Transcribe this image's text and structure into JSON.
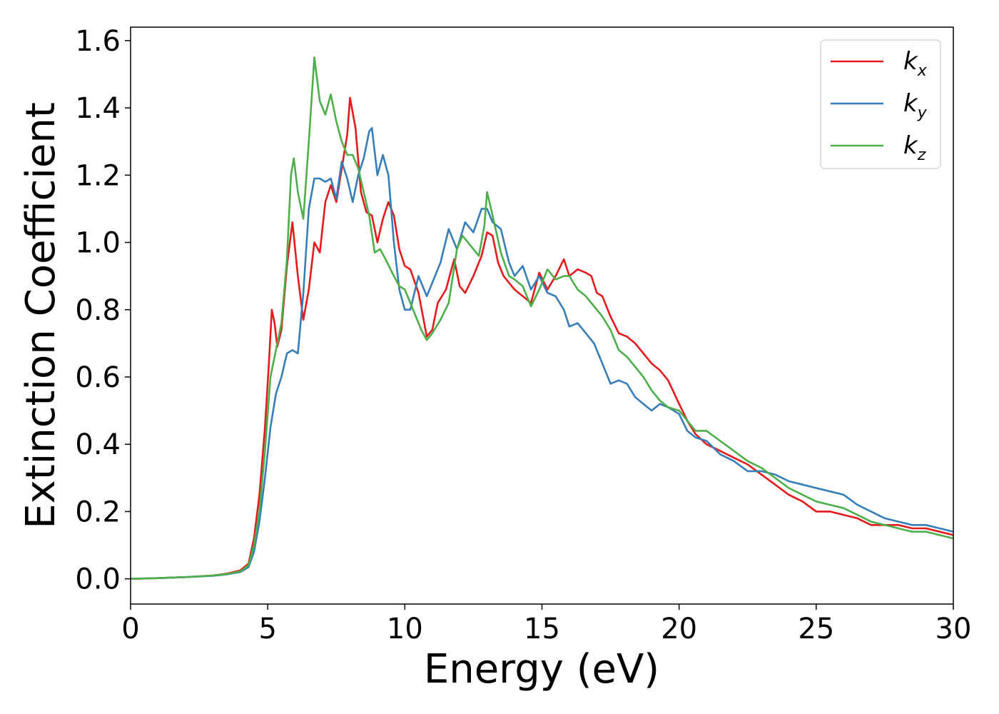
{
  "chart_data": {
    "type": "line",
    "xlabel": "Energy (eV)",
    "ylabel": "Extinction Coefficient",
    "xlim": [
      0,
      30
    ],
    "ylim": [
      -0.075,
      1.64
    ],
    "xticks": [
      0,
      5,
      10,
      15,
      20,
      25,
      30
    ],
    "yticks": [
      0.0,
      0.2,
      0.4,
      0.6,
      0.8,
      1.0,
      1.2,
      1.4,
      1.6
    ],
    "grid": false,
    "legend_position": "top-right",
    "series": [
      {
        "name": "k_x",
        "base": "k",
        "sub": "x",
        "color": "#e41a1c",
        "points": [
          [
            0,
            0.0
          ],
          [
            1,
            0.002
          ],
          [
            2,
            0.005
          ],
          [
            3,
            0.01
          ],
          [
            3.5,
            0.015
          ],
          [
            4,
            0.025
          ],
          [
            4.3,
            0.045
          ],
          [
            4.5,
            0.12
          ],
          [
            4.7,
            0.25
          ],
          [
            4.9,
            0.45
          ],
          [
            5.05,
            0.65
          ],
          [
            5.15,
            0.8
          ],
          [
            5.25,
            0.76
          ],
          [
            5.35,
            0.69
          ],
          [
            5.5,
            0.74
          ],
          [
            5.7,
            0.93
          ],
          [
            5.9,
            1.06
          ],
          [
            6.1,
            0.9
          ],
          [
            6.3,
            0.77
          ],
          [
            6.5,
            0.86
          ],
          [
            6.7,
            1.0
          ],
          [
            6.9,
            0.97
          ],
          [
            7.1,
            1.12
          ],
          [
            7.3,
            1.17
          ],
          [
            7.5,
            1.12
          ],
          [
            7.7,
            1.22
          ],
          [
            7.9,
            1.32
          ],
          [
            8.0,
            1.43
          ],
          [
            8.2,
            1.34
          ],
          [
            8.4,
            1.15
          ],
          [
            8.6,
            1.09
          ],
          [
            8.8,
            1.08
          ],
          [
            9.0,
            1.0
          ],
          [
            9.2,
            1.07
          ],
          [
            9.4,
            1.12
          ],
          [
            9.6,
            1.08
          ],
          [
            9.8,
            0.98
          ],
          [
            10.0,
            0.93
          ],
          [
            10.2,
            0.92
          ],
          [
            10.5,
            0.85
          ],
          [
            10.8,
            0.72
          ],
          [
            11.0,
            0.74
          ],
          [
            11.2,
            0.82
          ],
          [
            11.5,
            0.86
          ],
          [
            11.8,
            0.95
          ],
          [
            12.0,
            0.87
          ],
          [
            12.2,
            0.85
          ],
          [
            12.5,
            0.9
          ],
          [
            12.8,
            0.96
          ],
          [
            13.0,
            1.03
          ],
          [
            13.2,
            1.02
          ],
          [
            13.4,
            0.94
          ],
          [
            13.6,
            0.9
          ],
          [
            13.8,
            0.88
          ],
          [
            14.0,
            0.86
          ],
          [
            14.3,
            0.84
          ],
          [
            14.6,
            0.82
          ],
          [
            14.9,
            0.91
          ],
          [
            15.2,
            0.86
          ],
          [
            15.5,
            0.9
          ],
          [
            15.8,
            0.95
          ],
          [
            16.0,
            0.9
          ],
          [
            16.3,
            0.92
          ],
          [
            16.6,
            0.91
          ],
          [
            16.8,
            0.9
          ],
          [
            17.0,
            0.85
          ],
          [
            17.2,
            0.84
          ],
          [
            17.5,
            0.78
          ],
          [
            17.8,
            0.73
          ],
          [
            18.1,
            0.72
          ],
          [
            18.4,
            0.7
          ],
          [
            18.7,
            0.67
          ],
          [
            19.0,
            0.64
          ],
          [
            19.3,
            0.62
          ],
          [
            19.6,
            0.59
          ],
          [
            20.0,
            0.52
          ],
          [
            20.3,
            0.47
          ],
          [
            20.6,
            0.43
          ],
          [
            21.0,
            0.4
          ],
          [
            21.5,
            0.38
          ],
          [
            22.0,
            0.36
          ],
          [
            22.5,
            0.34
          ],
          [
            23.0,
            0.31
          ],
          [
            23.5,
            0.28
          ],
          [
            24.0,
            0.25
          ],
          [
            24.5,
            0.23
          ],
          [
            25.0,
            0.2
          ],
          [
            25.5,
            0.2
          ],
          [
            26.0,
            0.19
          ],
          [
            26.5,
            0.18
          ],
          [
            27.0,
            0.16
          ],
          [
            27.5,
            0.16
          ],
          [
            28.0,
            0.16
          ],
          [
            28.5,
            0.15
          ],
          [
            29.0,
            0.15
          ],
          [
            29.5,
            0.14
          ],
          [
            30.0,
            0.13
          ]
        ]
      },
      {
        "name": "k_y",
        "base": "k",
        "sub": "y",
        "color": "#377eb8",
        "points": [
          [
            0,
            0.0
          ],
          [
            1,
            0.002
          ],
          [
            2,
            0.005
          ],
          [
            3,
            0.009
          ],
          [
            3.5,
            0.013
          ],
          [
            4,
            0.02
          ],
          [
            4.3,
            0.035
          ],
          [
            4.5,
            0.08
          ],
          [
            4.7,
            0.17
          ],
          [
            4.9,
            0.3
          ],
          [
            5.1,
            0.45
          ],
          [
            5.3,
            0.55
          ],
          [
            5.5,
            0.6
          ],
          [
            5.7,
            0.67
          ],
          [
            5.9,
            0.68
          ],
          [
            6.1,
            0.67
          ],
          [
            6.3,
            0.85
          ],
          [
            6.5,
            1.1
          ],
          [
            6.7,
            1.19
          ],
          [
            6.9,
            1.19
          ],
          [
            7.1,
            1.18
          ],
          [
            7.3,
            1.19
          ],
          [
            7.5,
            1.13
          ],
          [
            7.7,
            1.24
          ],
          [
            7.9,
            1.19
          ],
          [
            8.1,
            1.12
          ],
          [
            8.3,
            1.2
          ],
          [
            8.5,
            1.25
          ],
          [
            8.7,
            1.33
          ],
          [
            8.8,
            1.34
          ],
          [
            9.0,
            1.2
          ],
          [
            9.2,
            1.26
          ],
          [
            9.4,
            1.2
          ],
          [
            9.6,
            1.0
          ],
          [
            9.8,
            0.86
          ],
          [
            10.0,
            0.8
          ],
          [
            10.2,
            0.8
          ],
          [
            10.5,
            0.9
          ],
          [
            10.8,
            0.84
          ],
          [
            11.0,
            0.88
          ],
          [
            11.3,
            0.94
          ],
          [
            11.6,
            1.04
          ],
          [
            11.9,
            0.98
          ],
          [
            12.2,
            1.06
          ],
          [
            12.5,
            1.03
          ],
          [
            12.8,
            1.1
          ],
          [
            13.0,
            1.1
          ],
          [
            13.2,
            1.06
          ],
          [
            13.5,
            1.04
          ],
          [
            13.8,
            0.94
          ],
          [
            14.0,
            0.9
          ],
          [
            14.3,
            0.93
          ],
          [
            14.6,
            0.86
          ],
          [
            14.9,
            0.9
          ],
          [
            15.2,
            0.85
          ],
          [
            15.5,
            0.84
          ],
          [
            15.8,
            0.8
          ],
          [
            16.0,
            0.75
          ],
          [
            16.3,
            0.76
          ],
          [
            16.6,
            0.73
          ],
          [
            16.9,
            0.7
          ],
          [
            17.2,
            0.64
          ],
          [
            17.5,
            0.58
          ],
          [
            17.8,
            0.59
          ],
          [
            18.1,
            0.58
          ],
          [
            18.4,
            0.54
          ],
          [
            18.7,
            0.52
          ],
          [
            19.0,
            0.5
          ],
          [
            19.3,
            0.52
          ],
          [
            19.6,
            0.51
          ],
          [
            20.0,
            0.49
          ],
          [
            20.3,
            0.44
          ],
          [
            20.6,
            0.42
          ],
          [
            21.0,
            0.41
          ],
          [
            21.5,
            0.37
          ],
          [
            22.0,
            0.35
          ],
          [
            22.5,
            0.32
          ],
          [
            23.0,
            0.32
          ],
          [
            23.5,
            0.31
          ],
          [
            24.0,
            0.29
          ],
          [
            24.5,
            0.28
          ],
          [
            25.0,
            0.27
          ],
          [
            25.5,
            0.26
          ],
          [
            26.0,
            0.25
          ],
          [
            26.5,
            0.22
          ],
          [
            27.0,
            0.2
          ],
          [
            27.5,
            0.18
          ],
          [
            28.0,
            0.17
          ],
          [
            28.5,
            0.16
          ],
          [
            29.0,
            0.16
          ],
          [
            29.5,
            0.15
          ],
          [
            30.0,
            0.14
          ]
        ]
      },
      {
        "name": "k_z",
        "base": "k",
        "sub": "z",
        "color": "#4daf4a",
        "points": [
          [
            0,
            0.0
          ],
          [
            1,
            0.002
          ],
          [
            2,
            0.005
          ],
          [
            3,
            0.01
          ],
          [
            3.5,
            0.014
          ],
          [
            4,
            0.022
          ],
          [
            4.3,
            0.04
          ],
          [
            4.5,
            0.1
          ],
          [
            4.7,
            0.2
          ],
          [
            4.9,
            0.38
          ],
          [
            5.1,
            0.6
          ],
          [
            5.3,
            0.68
          ],
          [
            5.5,
            0.76
          ],
          [
            5.7,
            0.95
          ],
          [
            5.85,
            1.2
          ],
          [
            5.95,
            1.25
          ],
          [
            6.1,
            1.15
          ],
          [
            6.3,
            1.07
          ],
          [
            6.5,
            1.3
          ],
          [
            6.7,
            1.55
          ],
          [
            6.9,
            1.42
          ],
          [
            7.1,
            1.38
          ],
          [
            7.3,
            1.44
          ],
          [
            7.5,
            1.36
          ],
          [
            7.7,
            1.3
          ],
          [
            7.9,
            1.26
          ],
          [
            8.1,
            1.26
          ],
          [
            8.3,
            1.22
          ],
          [
            8.5,
            1.15
          ],
          [
            8.7,
            1.08
          ],
          [
            8.9,
            0.97
          ],
          [
            9.1,
            0.98
          ],
          [
            9.3,
            0.95
          ],
          [
            9.6,
            0.9
          ],
          [
            9.8,
            0.87
          ],
          [
            10.0,
            0.86
          ],
          [
            10.3,
            0.8
          ],
          [
            10.6,
            0.74
          ],
          [
            10.8,
            0.71
          ],
          [
            11.0,
            0.73
          ],
          [
            11.3,
            0.77
          ],
          [
            11.6,
            0.82
          ],
          [
            11.9,
            0.98
          ],
          [
            12.1,
            1.02
          ],
          [
            12.4,
            0.99
          ],
          [
            12.7,
            0.96
          ],
          [
            12.9,
            1.05
          ],
          [
            13.0,
            1.15
          ],
          [
            13.2,
            1.08
          ],
          [
            13.5,
            0.97
          ],
          [
            13.8,
            0.9
          ],
          [
            14.0,
            0.89
          ],
          [
            14.3,
            0.87
          ],
          [
            14.6,
            0.81
          ],
          [
            14.9,
            0.86
          ],
          [
            15.2,
            0.92
          ],
          [
            15.5,
            0.89
          ],
          [
            15.8,
            0.9
          ],
          [
            16.0,
            0.9
          ],
          [
            16.3,
            0.86
          ],
          [
            16.6,
            0.84
          ],
          [
            16.9,
            0.81
          ],
          [
            17.2,
            0.78
          ],
          [
            17.5,
            0.74
          ],
          [
            17.8,
            0.68
          ],
          [
            18.1,
            0.66
          ],
          [
            18.4,
            0.63
          ],
          [
            18.7,
            0.6
          ],
          [
            19.0,
            0.56
          ],
          [
            19.3,
            0.53
          ],
          [
            19.6,
            0.51
          ],
          [
            20.0,
            0.5
          ],
          [
            20.3,
            0.47
          ],
          [
            20.6,
            0.44
          ],
          [
            21.0,
            0.44
          ],
          [
            21.5,
            0.41
          ],
          [
            22.0,
            0.38
          ],
          [
            22.5,
            0.35
          ],
          [
            23.0,
            0.33
          ],
          [
            23.5,
            0.3
          ],
          [
            24.0,
            0.27
          ],
          [
            24.5,
            0.25
          ],
          [
            25.0,
            0.23
          ],
          [
            25.5,
            0.22
          ],
          [
            26.0,
            0.21
          ],
          [
            26.5,
            0.19
          ],
          [
            27.0,
            0.17
          ],
          [
            27.5,
            0.16
          ],
          [
            28.0,
            0.15
          ],
          [
            28.5,
            0.14
          ],
          [
            29.0,
            0.14
          ],
          [
            29.5,
            0.13
          ],
          [
            30.0,
            0.12
          ]
        ]
      }
    ]
  }
}
